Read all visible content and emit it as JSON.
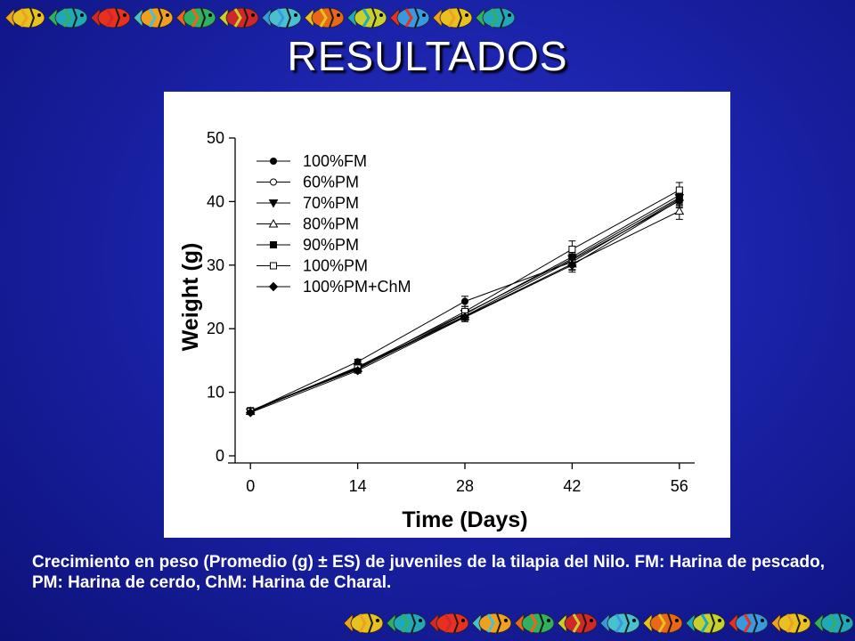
{
  "slide": {
    "title": "RESULTADOS",
    "caption": "Crecimiento en peso (Promedio (g) ± ES) de juveniles de la tilapia del Nilo. FM: Harina de pescado, PM: Harina de cerdo, ChM: Harina de Charal."
  },
  "decor": {
    "fish_colors": [
      "#e8c020",
      "#20a8b8",
      "#e83020",
      "#f0a020",
      "#30b060",
      "#d02828",
      "#48c0d0",
      "#e86818",
      "#c8d030",
      "#3898e0"
    ]
  },
  "chart_data": {
    "type": "line",
    "x": [
      0,
      14,
      28,
      42,
      56
    ],
    "xlabel": "Time (Days)",
    "ylabel": "Weight (g)",
    "xlim": [
      -2,
      58
    ],
    "ylim": [
      0,
      50
    ],
    "xticks": [
      0,
      14,
      28,
      42,
      56
    ],
    "yticks": [
      0,
      10,
      20,
      30,
      40,
      50
    ],
    "legend_position": "top-left",
    "error_bars": true,
    "series": [
      {
        "name": "100%FM",
        "marker": "circle-filled",
        "values": [
          7.0,
          14.8,
          24.3,
          30.5,
          40.4
        ],
        "errors": [
          0.3,
          0.4,
          0.8,
          1.2,
          1.0
        ]
      },
      {
        "name": "60%PM",
        "marker": "circle-open",
        "values": [
          7.1,
          13.9,
          22.0,
          30.8,
          40.1
        ],
        "errors": [
          0.3,
          0.4,
          0.7,
          1.0,
          1.1
        ]
      },
      {
        "name": "70%PM",
        "marker": "triangle-down-filled",
        "values": [
          6.9,
          14.0,
          22.4,
          31.0,
          40.6
        ],
        "errors": [
          0.3,
          0.4,
          0.7,
          1.0,
          1.0
        ]
      },
      {
        "name": "80%PM",
        "marker": "triangle-up-open",
        "values": [
          7.0,
          13.7,
          21.9,
          30.2,
          38.5
        ],
        "errors": [
          0.3,
          0.4,
          0.6,
          1.0,
          1.3
        ]
      },
      {
        "name": "90%PM",
        "marker": "square-filled",
        "values": [
          7.1,
          13.6,
          22.3,
          31.3,
          41.0
        ],
        "errors": [
          0.3,
          0.4,
          0.7,
          1.0,
          1.0
        ]
      },
      {
        "name": "100%PM",
        "marker": "square-open",
        "values": [
          7.0,
          13.8,
          22.7,
          32.5,
          41.8
        ],
        "errors": [
          0.3,
          0.4,
          0.8,
          1.3,
          1.2
        ]
      },
      {
        "name": "100%PM+ChM",
        "marker": "diamond-filled",
        "values": [
          6.8,
          13.4,
          21.8,
          30.0,
          40.2
        ],
        "errors": [
          0.3,
          0.4,
          0.7,
          1.1,
          1.0
        ]
      }
    ]
  }
}
